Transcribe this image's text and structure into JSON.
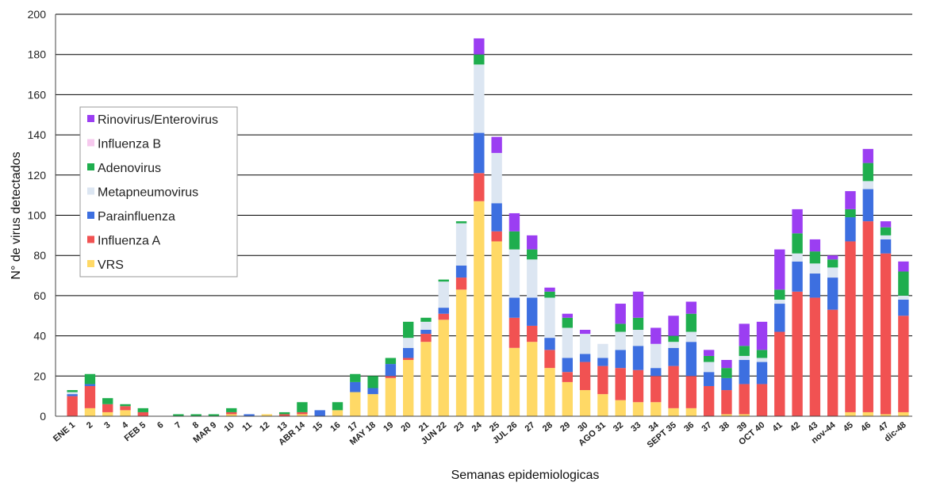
{
  "chart_data": {
    "type": "bar",
    "stacked": true,
    "xlabel": "Semanas epidemiologicas",
    "ylabel": "N° de virus detectados",
    "ylim": [
      0,
      200
    ],
    "yticks": [
      0,
      20,
      40,
      60,
      80,
      100,
      120,
      140,
      160,
      180,
      200
    ],
    "grid": true,
    "legend_position": "left",
    "categories": [
      "ENE 1",
      "2",
      "3",
      "4",
      "FEB 5",
      "6",
      "7",
      "8",
      "MAR 9",
      "10",
      "11",
      "12",
      "13",
      "ABR 14",
      "15",
      "16",
      "17",
      "MAY 18",
      "19",
      "20",
      "21",
      "JUN 22",
      "23",
      "24",
      "25",
      "JUL 26",
      "27",
      "28",
      "29",
      "30",
      "AGO 31",
      "32",
      "33",
      "34",
      "SEPT 35",
      "36",
      "37",
      "38",
      "39",
      "OCT 40",
      "41",
      "42",
      "43",
      "nov-44",
      "45",
      "46",
      "47",
      "dic-48"
    ],
    "series": [
      {
        "name": "VRS",
        "color": "#ffd966",
        "values": [
          0,
          4,
          2,
          3,
          0,
          0,
          0,
          0,
          0,
          1,
          0,
          1,
          0,
          1,
          0,
          3,
          12,
          11,
          19,
          28,
          37,
          48,
          63,
          107,
          87,
          34,
          37,
          24,
          17,
          13,
          11,
          8,
          7,
          7,
          4,
          4,
          0,
          1,
          1,
          0,
          0,
          0,
          0,
          0,
          2,
          2,
          1,
          2
        ]
      },
      {
        "name": "Influenza A",
        "color": "#f15252",
        "values": [
          10,
          11,
          4,
          2,
          2,
          0,
          0,
          0,
          0,
          1,
          0,
          0,
          1,
          1,
          0,
          0,
          0,
          0,
          1,
          1,
          4,
          3,
          6,
          14,
          5,
          15,
          8,
          9,
          5,
          14,
          14,
          16,
          16,
          13,
          21,
          16,
          15,
          12,
          15,
          16,
          42,
          62,
          59,
          53,
          85,
          95,
          80,
          48
        ]
      },
      {
        "name": "Parainfluenza",
        "color": "#3d6fe0",
        "values": [
          1,
          1,
          0,
          0,
          0,
          0,
          0,
          0,
          0,
          0,
          1,
          0,
          0,
          0,
          3,
          0,
          5,
          3,
          6,
          5,
          2,
          3,
          6,
          20,
          14,
          10,
          14,
          6,
          7,
          4,
          4,
          9,
          12,
          4,
          9,
          17,
          7,
          6,
          12,
          11,
          14,
          15,
          12,
          16,
          12,
          16,
          7,
          8
        ]
      },
      {
        "name": "Metapneumovirus",
        "color": "#dce6f2",
        "values": [
          1,
          0,
          0,
          0,
          0,
          0,
          0,
          0,
          0,
          0,
          0,
          0,
          0,
          0,
          0,
          0,
          0,
          0,
          0,
          5,
          4,
          13,
          21,
          34,
          25,
          24,
          19,
          20,
          15,
          10,
          7,
          9,
          8,
          12,
          3,
          5,
          5,
          0,
          2,
          2,
          2,
          4,
          5,
          5,
          0,
          4,
          2,
          2
        ]
      },
      {
        "name": "Adenovirus",
        "color": "#1fae4e",
        "values": [
          1,
          5,
          3,
          1,
          2,
          0,
          1,
          1,
          1,
          2,
          0,
          0,
          1,
          5,
          0,
          4,
          4,
          6,
          3,
          8,
          2,
          1,
          1,
          5,
          0,
          9,
          5,
          3,
          5,
          0,
          0,
          4,
          6,
          0,
          3,
          9,
          3,
          5,
          5,
          4,
          5,
          10,
          6,
          4,
          4,
          9,
          4,
          12
        ]
      },
      {
        "name": "Influenza B",
        "color": "#f6c9ee",
        "values": [
          0,
          0,
          0,
          0,
          0,
          0,
          0,
          0,
          0,
          0,
          0,
          0,
          0,
          0,
          0,
          0,
          0,
          0,
          0,
          0,
          0,
          0,
          0,
          0,
          0,
          0,
          0,
          0,
          0,
          0,
          0,
          0,
          0,
          0,
          0,
          0,
          0,
          0,
          0,
          0,
          0,
          0,
          0,
          0,
          0,
          0,
          0,
          0
        ]
      },
      {
        "name": "Rinovirus/Enterovirus",
        "color": "#9b3ef2",
        "values": [
          0,
          0,
          0,
          0,
          0,
          0,
          0,
          0,
          0,
          0,
          0,
          0,
          0,
          0,
          0,
          0,
          0,
          0,
          0,
          0,
          0,
          0,
          0,
          8,
          8,
          9,
          7,
          2,
          2,
          2,
          0,
          10,
          13,
          8,
          10,
          6,
          3,
          4,
          11,
          14,
          20,
          12,
          6,
          2,
          9,
          7,
          3,
          5
        ]
      }
    ],
    "legend_order": [
      "Rinovirus/Enterovirus",
      "Influenza B",
      "Adenovirus",
      "Metapneumovirus",
      "Parainfluenza",
      "Influenza A",
      "VRS"
    ]
  }
}
